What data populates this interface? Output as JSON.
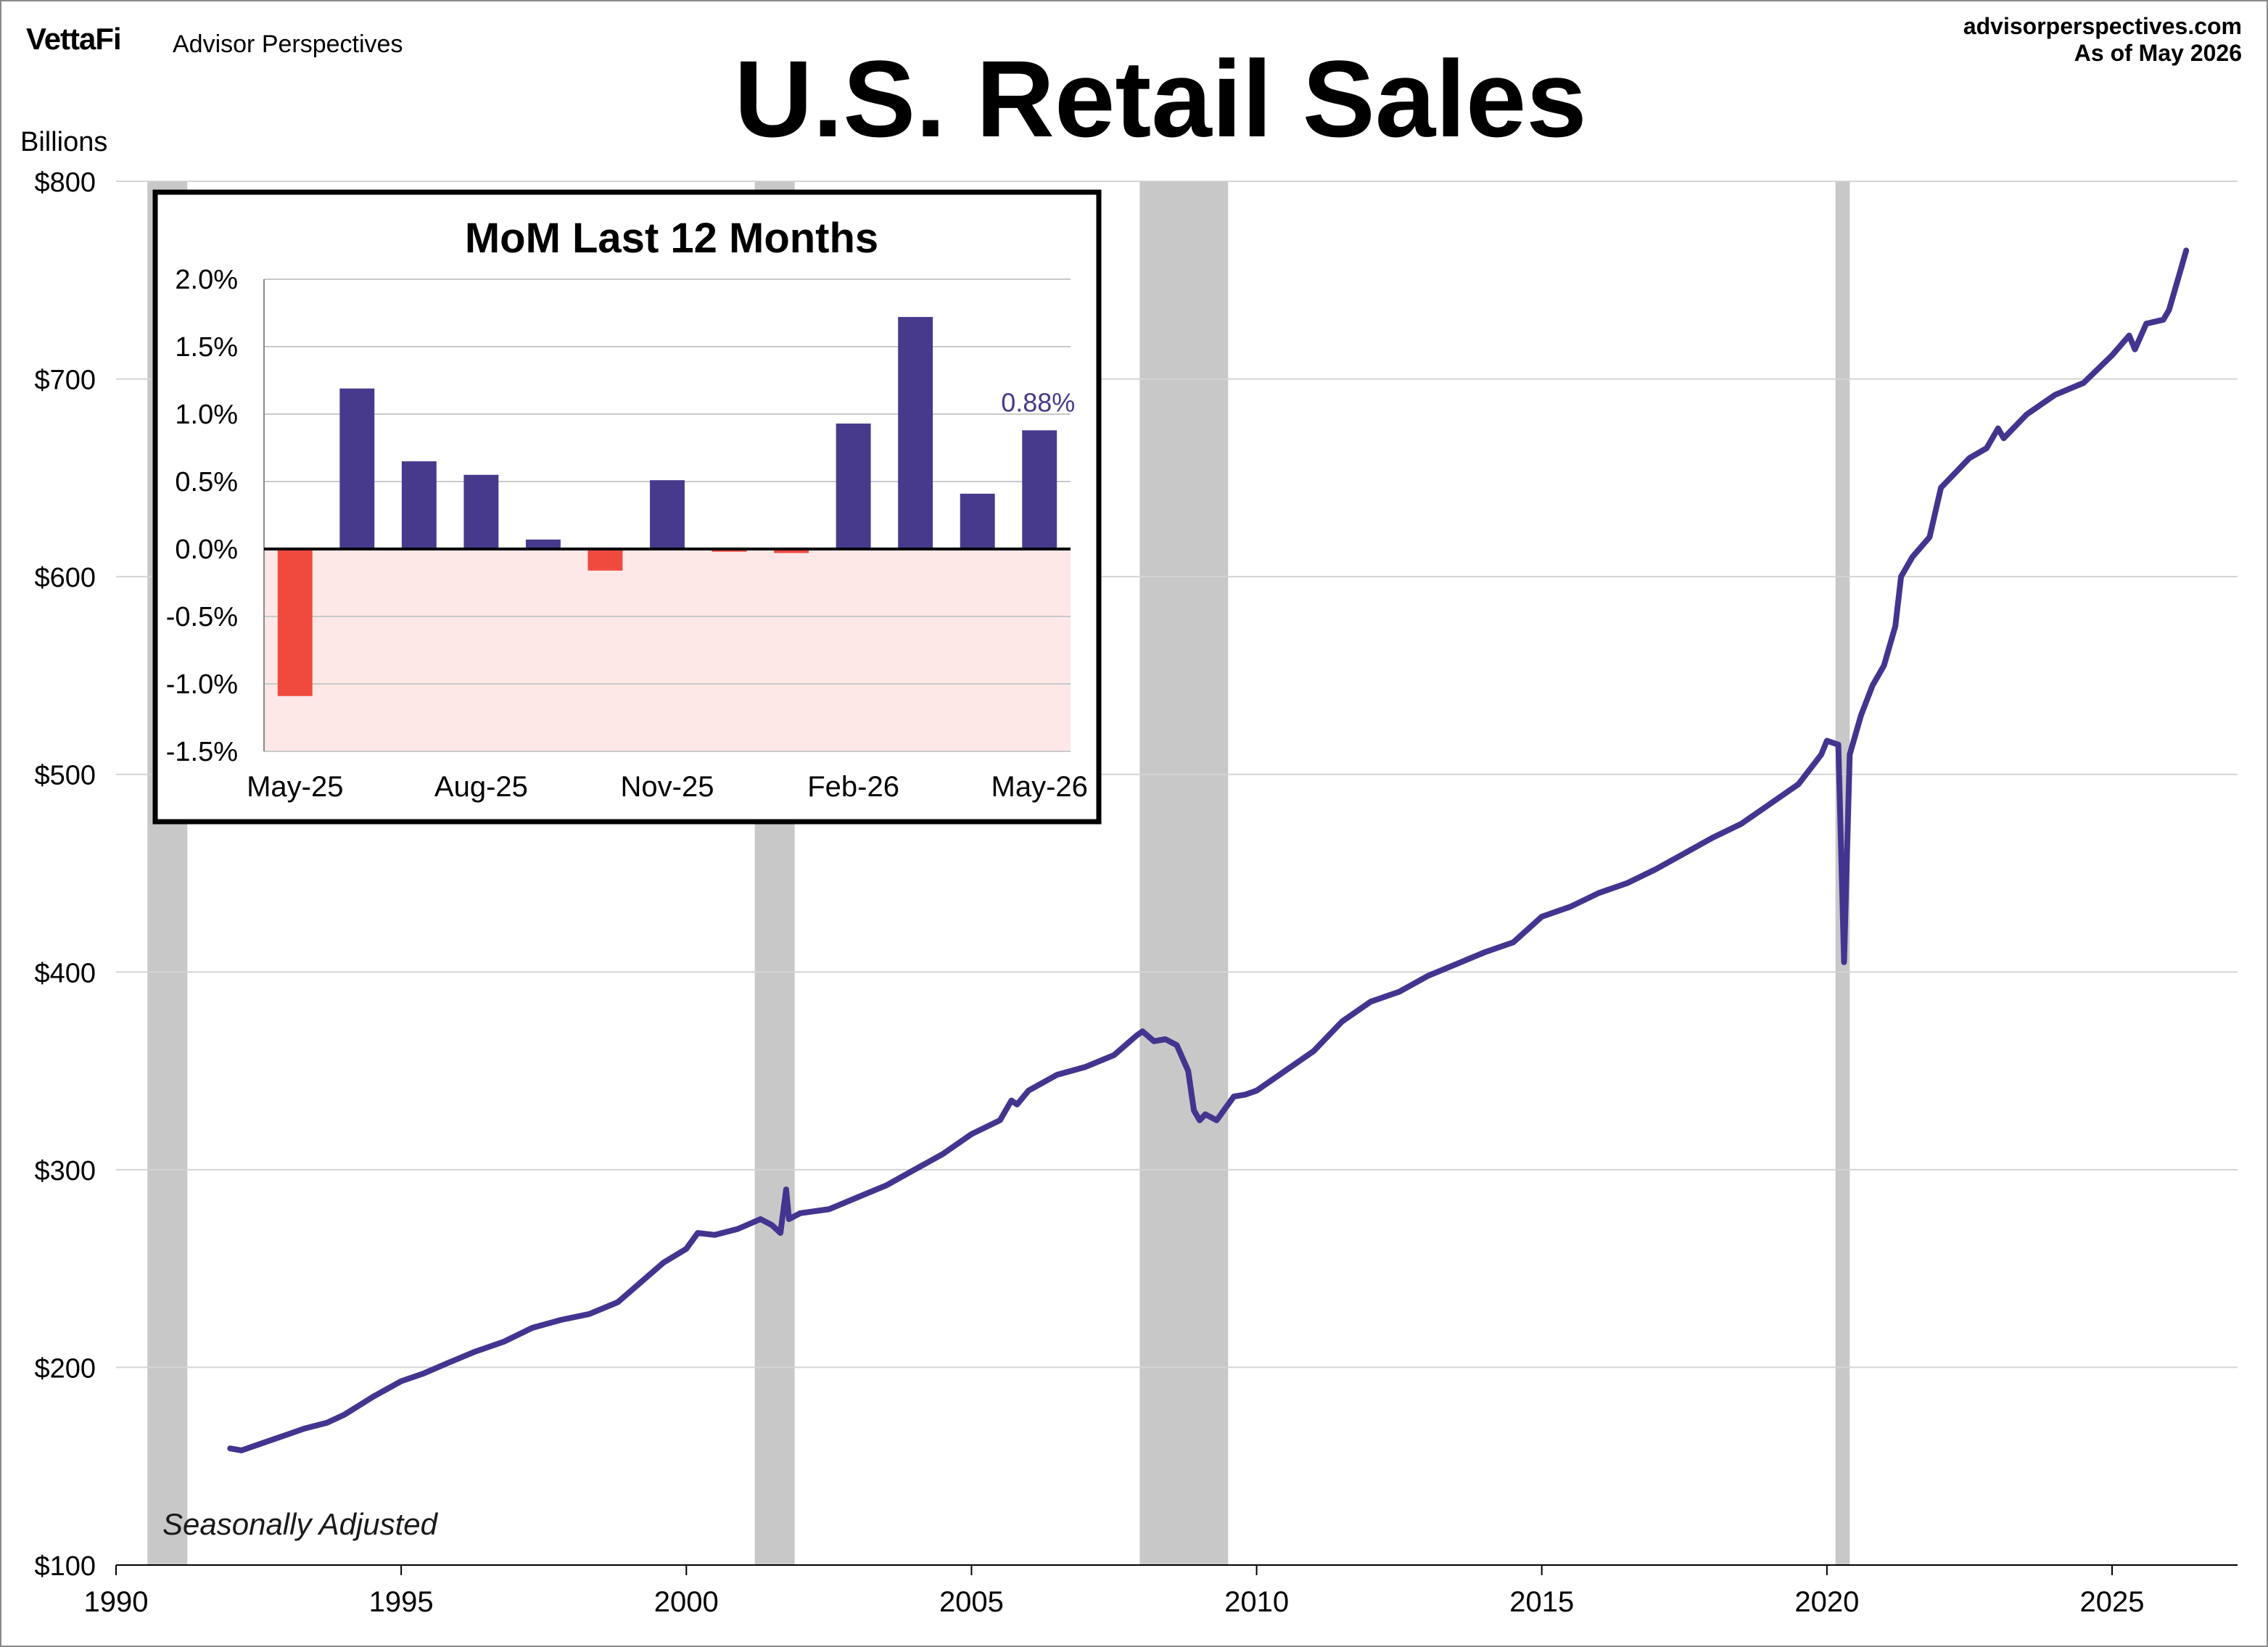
{
  "header": {
    "logo": "VettaFi",
    "brand": "Advisor Perspectives",
    "site": "advisorperspectives.com",
    "as_of": "As of May 2026",
    "title": "U.S. Retail Sales"
  },
  "colors": {
    "line": "#44348f",
    "bar_positive": "#473a8c",
    "bar_negative": "#f04a3e",
    "recession": "#c8c8c8",
    "negative_zone": "#fde8e7",
    "grid": "#d4d4d4"
  },
  "chart_data": [
    {
      "type": "line",
      "title": "U.S. Retail Sales",
      "ylabel": "Billions",
      "note": "Seasonally Adjusted",
      "xlim": [
        1990,
        2027.2
      ],
      "ylim": [
        100,
        800
      ],
      "x_ticks": [
        1990,
        1995,
        2000,
        2005,
        2010,
        2015,
        2020,
        2025
      ],
      "y_ticks": [
        {
          "value": 100,
          "label": "$100"
        },
        {
          "value": 200,
          "label": "$200"
        },
        {
          "value": 300,
          "label": "$300"
        },
        {
          "value": 400,
          "label": "$400"
        },
        {
          "value": 500,
          "label": "$500"
        },
        {
          "value": 600,
          "label": "$600"
        },
        {
          "value": 700,
          "label": "$700"
        },
        {
          "value": 800,
          "label": "$800"
        }
      ],
      "grid": true,
      "recessions": [
        [
          1990.55,
          1991.25
        ],
        [
          2001.2,
          2001.9
        ],
        [
          2007.95,
          2009.5
        ],
        [
          2020.15,
          2020.4
        ]
      ],
      "series": [
        {
          "x": [
            1992.0,
            1992.2,
            1992.5,
            1993.0,
            1993.3,
            1993.7,
            1994.0,
            1994.5,
            1995.0,
            1995.4,
            1995.8,
            1996.3,
            1996.8,
            1997.3,
            1997.8,
            1998.3,
            1998.8,
            1999.2,
            1999.6,
            2000.0,
            2000.2,
            2000.5,
            2000.9,
            2001.3,
            2001.5,
            2001.65,
            2001.75,
            2001.8,
            2002.0,
            2002.5,
            2003.0,
            2003.5,
            2004.0,
            2004.5,
            2005.0,
            2005.5,
            2005.7,
            2005.8,
            2006.0,
            2006.5,
            2007.0,
            2007.5,
            2007.9,
            2008.0,
            2008.2,
            2008.4,
            2008.6,
            2008.8,
            2008.9,
            2009.0,
            2009.1,
            2009.3,
            2009.6,
            2009.8,
            2010.0,
            2010.5,
            2011.0,
            2011.5,
            2012.0,
            2012.5,
            2013.0,
            2013.5,
            2014.0,
            2014.5,
            2015.0,
            2015.5,
            2016.0,
            2016.5,
            2017.0,
            2017.5,
            2018.0,
            2018.5,
            2019.0,
            2019.5,
            2019.9,
            2020.0,
            2020.2,
            2020.3,
            2020.4,
            2020.6,
            2020.8,
            2021.0,
            2021.2,
            2021.3,
            2021.5,
            2021.8,
            2022.0,
            2022.5,
            2022.8,
            2023.0,
            2023.1,
            2023.5,
            2024.0,
            2024.5,
            2025.0,
            2025.3,
            2025.4,
            2025.6,
            2025.9,
            2026.0,
            2026.2,
            2026.3
          ],
          "values": [
            159,
            158,
            161,
            166,
            169,
            172,
            176,
            185,
            193,
            197,
            202,
            208,
            213,
            220,
            224,
            227,
            233,
            243,
            253,
            260,
            268,
            267,
            270,
            275,
            272,
            268,
            290,
            275,
            278,
            280,
            286,
            292,
            300,
            308,
            318,
            325,
            335,
            333,
            340,
            348,
            352,
            358,
            368,
            370,
            365,
            366,
            363,
            350,
            330,
            325,
            328,
            325,
            337,
            338,
            340,
            350,
            360,
            375,
            385,
            390,
            398,
            404,
            410,
            415,
            428,
            433,
            440,
            445,
            452,
            460,
            468,
            475,
            485,
            495,
            510,
            517,
            515,
            405,
            510,
            530,
            545,
            555,
            575,
            600,
            610,
            620,
            645,
            660,
            665,
            675,
            670,
            682,
            692,
            698,
            712,
            722,
            715,
            728,
            730,
            735,
            755,
            765
          ]
        }
      ]
    },
    {
      "type": "bar",
      "title": "MoM Last 12 Months",
      "categories": [
        "May-25",
        "Jun-25",
        "Jul-25",
        "Aug-25",
        "Sep-25",
        "Oct-25",
        "Nov-25",
        "Dec-25",
        "Jan-26",
        "Feb-26",
        "Mar-26",
        "Apr-26",
        "May-26"
      ],
      "x_tick_labels": [
        "May-25",
        "Aug-25",
        "Nov-25",
        "Feb-26",
        "May-26"
      ],
      "values": [
        -1.09,
        1.19,
        0.65,
        0.55,
        0.07,
        -0.16,
        0.51,
        -0.02,
        -0.03,
        0.93,
        1.72,
        0.41,
        0.88
      ],
      "ylim": [
        -1.5,
        2.0
      ],
      "y_ticks": [
        {
          "value": 2.0,
          "label": "2.0%"
        },
        {
          "value": 1.5,
          "label": "1.5%"
        },
        {
          "value": 1.0,
          "label": "1.0%"
        },
        {
          "value": 0.5,
          "label": "0.5%"
        },
        {
          "value": 0.0,
          "label": "0.0%"
        },
        {
          "value": -0.5,
          "label": "-0.5%"
        },
        {
          "value": -1.0,
          "label": "-1.0%"
        },
        {
          "value": -1.5,
          "label": "-1.5%"
        }
      ],
      "last_value_label": "0.88%",
      "grid": true
    }
  ]
}
